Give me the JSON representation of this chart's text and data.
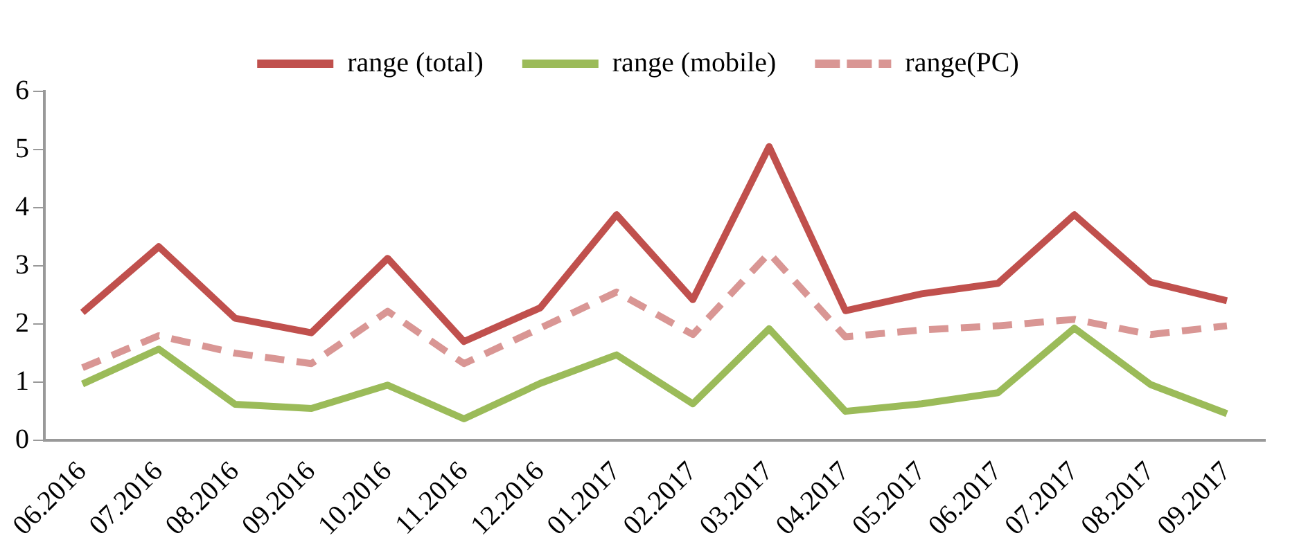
{
  "chart_data": {
    "type": "line",
    "categories": [
      "06.2016",
      "07.2016",
      "08.2016",
      "09.2016",
      "10.2016",
      "11.2016",
      "12.2016",
      "01.2017",
      "02.2017",
      "03.2017",
      "04.2017",
      "05.2017",
      "06.2017",
      "07.2017",
      "08.2017",
      "09.2017"
    ],
    "series": [
      {
        "name": "range (total)",
        "color": "#c0504d",
        "line_style": "solid",
        "values": [
          2.2,
          3.33,
          2.1,
          1.85,
          3.13,
          1.7,
          2.28,
          3.88,
          2.42,
          5.05,
          2.23,
          2.52,
          2.7,
          3.88,
          2.72,
          2.4
        ]
      },
      {
        "name": "range (mobile)",
        "color": "#9bbb59",
        "line_style": "solid",
        "values": [
          0.97,
          1.57,
          0.62,
          0.55,
          0.95,
          0.37,
          0.98,
          1.47,
          0.63,
          1.92,
          0.5,
          0.63,
          0.82,
          1.93,
          0.96,
          0.46
        ]
      },
      {
        "name": "range(PC)",
        "color": "#d99694",
        "line_style": "dashed",
        "values": [
          1.25,
          1.8,
          1.5,
          1.32,
          2.22,
          1.32,
          1.93,
          2.55,
          1.82,
          3.22,
          1.78,
          1.9,
          1.97,
          2.08,
          1.82,
          1.97
        ]
      }
    ],
    "ylim": [
      0,
      6
    ],
    "yticks": [
      0,
      1,
      2,
      3,
      4,
      5,
      6
    ],
    "grid": false,
    "legend": "top",
    "marker": "none"
  }
}
